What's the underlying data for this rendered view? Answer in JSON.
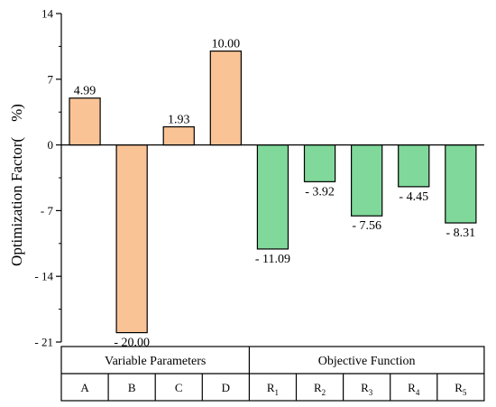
{
  "chart_data": {
    "type": "bar",
    "ylabel": "Optimization Factor(　%)",
    "ylim": [
      -21,
      14
    ],
    "yticks": [
      14,
      7,
      0,
      -7,
      -14,
      -21
    ],
    "ytick_labels": [
      "14",
      "7",
      "0",
      "- 7",
      "- 14",
      "- 21"
    ],
    "categories": [
      {
        "main": "A",
        "sub": ""
      },
      {
        "main": "B",
        "sub": ""
      },
      {
        "main": "C",
        "sub": ""
      },
      {
        "main": "D",
        "sub": ""
      },
      {
        "main": "R",
        "sub": "1"
      },
      {
        "main": "R",
        "sub": "2"
      },
      {
        "main": "R",
        "sub": "3"
      },
      {
        "main": "R",
        "sub": "4"
      },
      {
        "main": "R",
        "sub": "5"
      }
    ],
    "values": [
      4.99,
      -20.0,
      1.93,
      10.0,
      -11.09,
      -3.92,
      -7.56,
      -4.45,
      -8.31
    ],
    "value_labels": [
      "4.99",
      "- 20.00",
      "1.93",
      "10.00",
      "- 11.09",
      "- 3.92",
      "- 7.56",
      "- 4.45",
      "- 8.31"
    ],
    "groups": [
      {
        "label": "Variable Parameters",
        "start": 0,
        "end": 3,
        "color": "#f9c396"
      },
      {
        "label": "Objective Function",
        "start": 4,
        "end": 8,
        "color": "#80d89a"
      }
    ]
  }
}
